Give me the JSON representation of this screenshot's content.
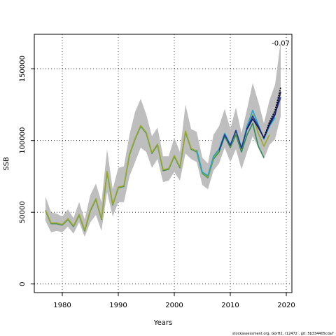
{
  "chart_data": {
    "type": "line",
    "xlabel": "Years",
    "ylabel": "SSB",
    "xlim": [
      1975,
      2021
    ],
    "ylim": [
      -6000,
      174000
    ],
    "x_ticks": [
      1980,
      1990,
      2000,
      2010,
      2020
    ],
    "y_ticks": [
      0,
      50000,
      100000,
      150000
    ],
    "grid": "dotted",
    "annotation": "-0.07",
    "footer": "stockassessment.org, GorH2, r12472 , git: 5b334405cda7",
    "colors": {
      "band": "#bebebe",
      "base": "#2e8b57",
      "peel_olive": "#9aa82a",
      "peel_cyan": "#1fa5c8",
      "peel_blue": "#1e3a9a",
      "peel_navy": "#1a1a6a",
      "peel_black": "#000000"
    },
    "band": {
      "years": [
        1977,
        1978,
        1979,
        1980,
        1981,
        1982,
        1983,
        1984,
        1985,
        1986,
        1987,
        1988,
        1989,
        1990,
        1991,
        1992,
        1993,
        1994,
        1995,
        1996,
        1997,
        1998,
        1999,
        2000,
        2001,
        2002,
        2003,
        2004,
        2005,
        2006,
        2007,
        2008,
        2009,
        2010,
        2011,
        2012,
        2013,
        2014,
        2015,
        2016,
        2017,
        2018,
        2019
      ],
      "lower": [
        44000,
        36000,
        37000,
        36000,
        40000,
        35000,
        43000,
        33000,
        43000,
        48000,
        37000,
        64000,
        47000,
        57000,
        57000,
        75000,
        85000,
        95000,
        92000,
        81000,
        87000,
        71000,
        72000,
        78000,
        72000,
        91000,
        87000,
        85000,
        69000,
        66000,
        79000,
        84000,
        95000,
        85000,
        94000,
        80000,
        92000,
        103000,
        95000,
        87000,
        97000,
        101000,
        117000
      ],
      "upper": [
        61000,
        50000,
        49000,
        47000,
        52000,
        46000,
        57000,
        45000,
        62000,
        70000,
        57000,
        94000,
        66000,
        81000,
        82000,
        104000,
        120000,
        129000,
        118000,
        103000,
        109000,
        89000,
        89000,
        102000,
        92000,
        125000,
        108000,
        106000,
        88000,
        84000,
        104000,
        110000,
        122000,
        108000,
        123000,
        105000,
        122000,
        140000,
        127000,
        112000,
        128000,
        139000,
        169000
      ]
    },
    "series": [
      {
        "years": [
          1977,
          1978,
          1979,
          1980,
          1981,
          1982,
          1983,
          1984,
          1985,
          1986,
          1987,
          1988,
          1989,
          1990,
          1991,
          1992,
          1993,
          1994,
          1995,
          1996,
          1997,
          1998,
          1999,
          2000,
          2001,
          2002,
          2003,
          2004,
          2005,
          2006,
          2007,
          2008,
          2009,
          2010,
          2011,
          2012,
          2013,
          2014,
          2015,
          2016
        ],
        "values": [
          51000,
          42000,
          42000,
          41000,
          45000,
          40000,
          48000,
          37000,
          51000,
          59000,
          45000,
          78000,
          55000,
          67000,
          68000,
          90000,
          101000,
          110000,
          105000,
          91000,
          97000,
          79000,
          80000,
          89000,
          81000,
          106000,
          94000,
          92000,
          77000,
          74000,
          87000,
          92000,
          103000,
          95000,
          104000,
          92000,
          104000,
          112000,
          96000,
          88000
        ],
        "color": "#2e8b57"
      },
      {
        "years": [
          1977,
          1978,
          1979,
          1980,
          1981,
          1982,
          1983,
          1984,
          1985,
          1986,
          1987,
          1988,
          1989,
          1990,
          1991,
          1992,
          1993,
          1994,
          1995,
          1996,
          1997,
          1998,
          1999,
          2000,
          2001,
          2002,
          2003,
          2004,
          2005,
          2006,
          2007,
          2008,
          2009,
          2010,
          2011,
          2012,
          2013,
          2014,
          2015,
          2016,
          2017
        ],
        "values": [
          51500,
          42500,
          42500,
          41500,
          45500,
          40500,
          48500,
          37500,
          51500,
          59500,
          45500,
          78500,
          55500,
          67500,
          68500,
          90500,
          101500,
          110500,
          105500,
          91500,
          97500,
          79500,
          80500,
          89500,
          81500,
          106500,
          94500,
          92500,
          77500,
          74500,
          88000,
          93000,
          104000,
          96000,
          106000,
          94000,
          108000,
          118000,
          105000,
          96000,
          104000
        ],
        "color": "#9aa82a"
      },
      {
        "years": [
          2004,
          2005,
          2006,
          2007,
          2008,
          2009,
          2010,
          2011,
          2012,
          2013,
          2014,
          2015,
          2016,
          2017,
          2018
        ],
        "values": [
          93500,
          78000,
          75500,
          89000,
          94000,
          105000,
          97000,
          107000,
          95000,
          110000,
          121000,
          111000,
          101000,
          110000,
          116000
        ],
        "color": "#1fa5c8"
      },
      {
        "years": [
          2008,
          2009,
          2010,
          2011,
          2012,
          2013,
          2014,
          2015,
          2016,
          2017,
          2018,
          2019
        ],
        "values": [
          93000,
          104000,
          96500,
          107000,
          94500,
          108500,
          117000,
          110000,
          101500,
          112000,
          119000,
          130000
        ],
        "color": "#1e3a9a"
      },
      {
        "years": [
          2013,
          2014,
          2015,
          2016,
          2017,
          2018,
          2019
        ],
        "values": [
          108000,
          115000,
          109000,
          102000,
          111000,
          118000,
          134000
        ],
        "color": "#1a1a6a"
      },
      {
        "years": [
          2016,
          2017,
          2018,
          2019
        ],
        "values": [
          102000,
          113000,
          121000,
          137000
        ],
        "color": "#000000"
      }
    ]
  }
}
